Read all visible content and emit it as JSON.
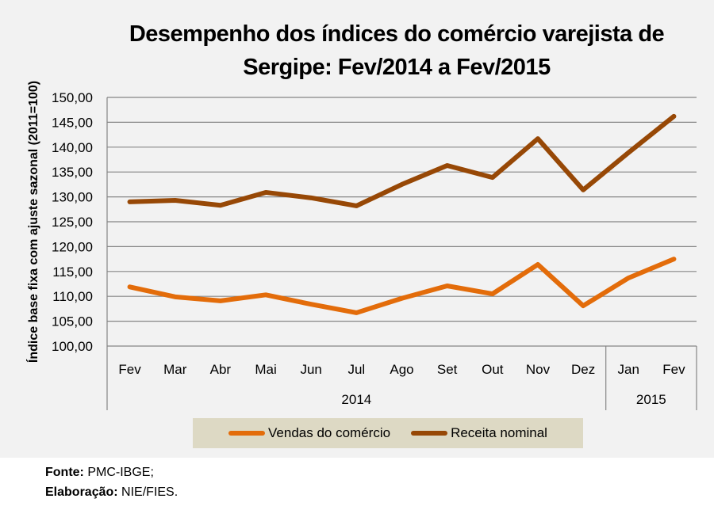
{
  "chart_data": {
    "type": "line",
    "title": "Desempenho dos índices do comércio varejista de Sergipe: Fev/2014 a Fev/2015",
    "title_lines": [
      "Desempenho dos índices do comércio varejista de",
      "Sergipe: Fev/2014 a Fev/2015"
    ],
    "ylabel": "Índice base fixa com ajuste sazonal (2011=100)",
    "xlabel": "",
    "ylim": [
      100,
      150
    ],
    "yticks": [
      "100,00",
      "105,00",
      "110,00",
      "115,00",
      "120,00",
      "125,00",
      "130,00",
      "135,00",
      "140,00",
      "145,00",
      "150,00"
    ],
    "ytick_values": [
      100,
      105,
      110,
      115,
      120,
      125,
      130,
      135,
      140,
      145,
      150
    ],
    "categories": [
      "Fev",
      "Mar",
      "Abr",
      "Mai",
      "Jun",
      "Jul",
      "Ago",
      "Set",
      "Out",
      "Nov",
      "Dez",
      "Jan",
      "Fev"
    ],
    "year_groups": [
      {
        "label": "2014",
        "count": 11
      },
      {
        "label": "2015",
        "count": 2
      }
    ],
    "grid": true,
    "legend_position": "bottom",
    "series": [
      {
        "name": "Vendas do comércio",
        "color": "#e36c0a",
        "values": [
          111.9,
          109.9,
          109.1,
          110.3,
          108.4,
          106.7,
          109.6,
          112.1,
          110.5,
          116.4,
          108.1,
          113.7,
          117.5
        ]
      },
      {
        "name": "Receita nominal",
        "color": "#974806",
        "values": [
          129.0,
          129.3,
          128.3,
          130.9,
          129.8,
          128.2,
          132.5,
          136.3,
          133.9,
          141.7,
          131.4,
          138.9,
          146.2
        ]
      }
    ]
  },
  "footer": {
    "source_label": "Fonte:",
    "source_value": "PMC-IBGE;",
    "credit_label": "Elaboração:",
    "credit_value": "NIE/FIES."
  }
}
